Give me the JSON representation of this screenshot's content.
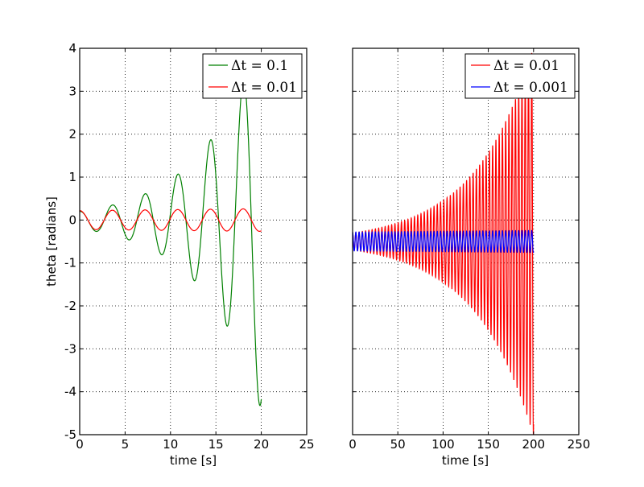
{
  "chart_data": [
    {
      "type": "line",
      "xlabel": "time [s]",
      "ylabel": "theta [radians]",
      "xlim": [
        0,
        25
      ],
      "ylim": [
        -5,
        4
      ],
      "xticks": [
        "0",
        "5",
        "10",
        "15",
        "20",
        "25"
      ],
      "yticks": [
        "-5",
        "-4",
        "-3",
        "-2",
        "-1",
        "0",
        "1",
        "2",
        "3",
        "4"
      ],
      "grid": true,
      "legend_placement": "top-right",
      "series": [
        {
          "name": "Δt = 0.1",
          "color": "#008000",
          "model": "growing-oscillation",
          "x_range": [
            0,
            20
          ],
          "period": 3.6,
          "initial_amplitude": 0.2,
          "amplitude_growth_per_second": 0.155,
          "end_value": -4.2
        },
        {
          "name": "Δt = 0.01",
          "color": "#ff0000",
          "model": "oscillation",
          "x_range": [
            0,
            20
          ],
          "period": 3.6,
          "amplitude": 0.22,
          "amplitude_growth_per_second": 0.01
        }
      ]
    },
    {
      "type": "line",
      "xlabel": "time [s]",
      "ylabel": "",
      "xlim": [
        0,
        250
      ],
      "ylim": [
        -5,
        4
      ],
      "xticks": [
        "0",
        "50",
        "100",
        "150",
        "200",
        "250"
      ],
      "yticks": [],
      "grid": true,
      "legend_placement": "top-right",
      "series": [
        {
          "name": "Δt = 0.01",
          "color": "#ff0000",
          "model": "growing-oscillation",
          "x_range": [
            0,
            200
          ],
          "period": 3.6,
          "initial_amplitude": 0.2,
          "amplitude_growth_per_second": 0.0156,
          "center": -0.5
        },
        {
          "name": "Δt = 0.001",
          "color": "#0000ff",
          "model": "oscillation",
          "x_range": [
            0,
            200
          ],
          "period": 3.6,
          "amplitude": 0.22,
          "amplitude_growth_per_second": 0.0008,
          "center": -0.5
        }
      ]
    }
  ]
}
